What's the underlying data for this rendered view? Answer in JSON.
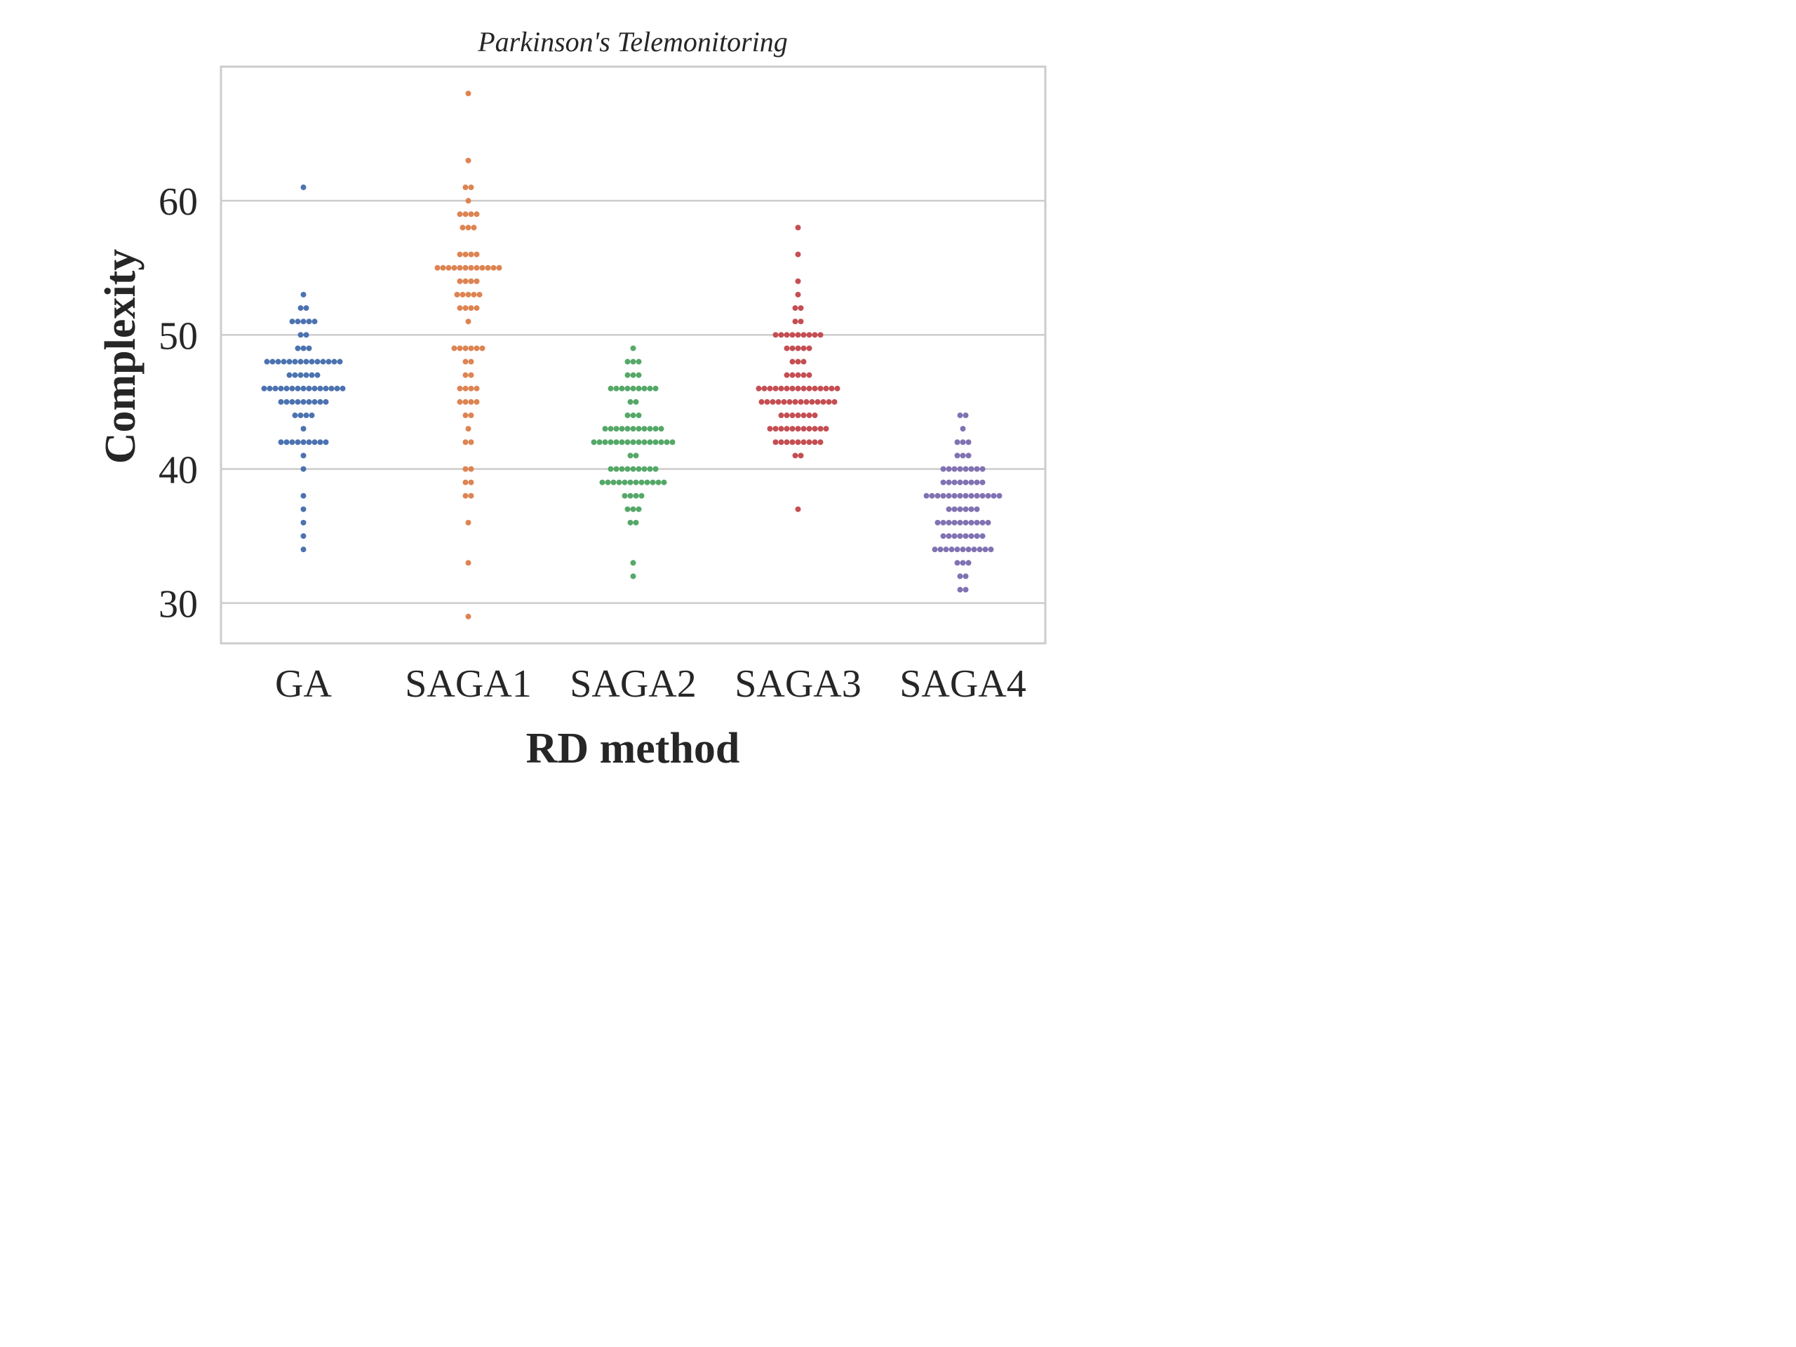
{
  "chart_data": {
    "type": "scatter",
    "subtype": "swarm",
    "title": "Parkinson's Telemonitoring",
    "xlabel": "RD method",
    "ylabel": "Complexity",
    "ylim": [
      27,
      70
    ],
    "yticks": [
      30,
      40,
      50,
      60
    ],
    "grid": "horizontal",
    "categories": [
      "GA",
      "SAGA1",
      "SAGA2",
      "SAGA3",
      "SAGA4"
    ],
    "series": [
      {
        "category": "GA",
        "color": "#4c72b0",
        "values": [
          61,
          53,
          52,
          52,
          51,
          51,
          51,
          51,
          51,
          50,
          50,
          49,
          49,
          49,
          48,
          48,
          48,
          48,
          48,
          48,
          48,
          48,
          48,
          48,
          48,
          48,
          48,
          48,
          47,
          47,
          47,
          47,
          47,
          47,
          46,
          46,
          46,
          46,
          46,
          46,
          46,
          46,
          46,
          46,
          46,
          46,
          46,
          46,
          46,
          45,
          45,
          45,
          45,
          45,
          45,
          45,
          45,
          45,
          44,
          44,
          44,
          44,
          43,
          42,
          42,
          42,
          42,
          42,
          42,
          42,
          42,
          42,
          41,
          40,
          38,
          37,
          36,
          35,
          34
        ]
      },
      {
        "category": "SAGA1",
        "color": "#dd8452",
        "values": [
          68,
          63,
          61,
          61,
          60,
          59,
          59,
          59,
          59,
          58,
          58,
          58,
          56,
          56,
          56,
          56,
          55,
          55,
          55,
          55,
          55,
          55,
          55,
          55,
          55,
          55,
          55,
          55,
          54,
          54,
          54,
          54,
          53,
          53,
          53,
          53,
          53,
          52,
          52,
          52,
          52,
          51,
          49,
          49,
          49,
          49,
          49,
          49,
          48,
          48,
          47,
          47,
          46,
          46,
          46,
          46,
          45,
          45,
          45,
          45,
          44,
          44,
          43,
          42,
          42,
          40,
          40,
          39,
          39,
          38,
          38,
          36,
          33,
          29
        ]
      },
      {
        "category": "SAGA2",
        "color": "#55a868",
        "values": [
          49,
          48,
          48,
          48,
          47,
          47,
          47,
          46,
          46,
          46,
          46,
          46,
          46,
          46,
          46,
          46,
          45,
          45,
          44,
          44,
          44,
          43,
          43,
          43,
          43,
          43,
          43,
          43,
          43,
          43,
          43,
          43,
          42,
          42,
          42,
          42,
          42,
          42,
          42,
          42,
          42,
          42,
          42,
          42,
          42,
          42,
          42,
          41,
          41,
          40,
          40,
          40,
          40,
          40,
          40,
          40,
          40,
          40,
          39,
          39,
          39,
          39,
          39,
          39,
          39,
          39,
          39,
          39,
          39,
          39,
          38,
          38,
          38,
          38,
          37,
          37,
          37,
          36,
          36,
          33,
          32
        ]
      },
      {
        "category": "SAGA3",
        "color": "#c44e52",
        "values": [
          58,
          56,
          54,
          53,
          52,
          52,
          51,
          51,
          50,
          50,
          50,
          50,
          50,
          50,
          50,
          50,
          50,
          49,
          49,
          49,
          49,
          49,
          48,
          48,
          48,
          47,
          47,
          47,
          47,
          47,
          46,
          46,
          46,
          46,
          46,
          46,
          46,
          46,
          46,
          46,
          46,
          46,
          46,
          46,
          46,
          45,
          45,
          45,
          45,
          45,
          45,
          45,
          45,
          45,
          45,
          45,
          45,
          45,
          45,
          44,
          44,
          44,
          44,
          44,
          44,
          44,
          43,
          43,
          43,
          43,
          43,
          43,
          43,
          43,
          43,
          43,
          43,
          42,
          42,
          42,
          42,
          42,
          42,
          42,
          42,
          42,
          41,
          41,
          37
        ]
      },
      {
        "category": "SAGA4",
        "color": "#8172b3",
        "values": [
          44,
          44,
          43,
          42,
          42,
          42,
          41,
          41,
          41,
          40,
          40,
          40,
          40,
          40,
          40,
          40,
          40,
          39,
          39,
          39,
          39,
          39,
          39,
          39,
          39,
          38,
          38,
          38,
          38,
          38,
          38,
          38,
          38,
          38,
          38,
          38,
          38,
          38,
          38,
          37,
          37,
          37,
          37,
          37,
          37,
          36,
          36,
          36,
          36,
          36,
          36,
          36,
          36,
          36,
          36,
          35,
          35,
          35,
          35,
          35,
          35,
          35,
          35,
          34,
          34,
          34,
          34,
          34,
          34,
          34,
          34,
          34,
          34,
          34,
          33,
          33,
          33,
          32,
          32,
          31,
          31
        ]
      }
    ]
  }
}
